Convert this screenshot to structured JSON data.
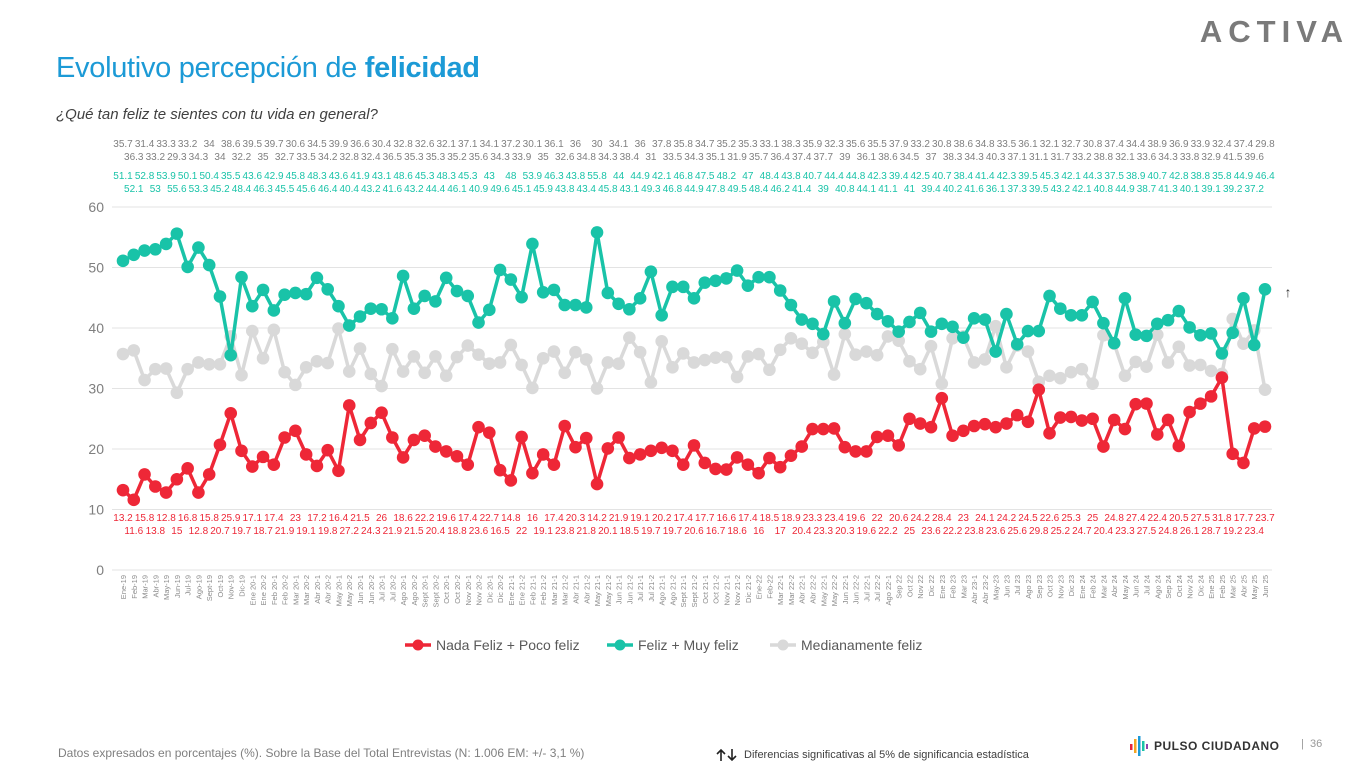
{
  "header": {
    "title_prefix": "Evolutivo percepción de ",
    "title_bold": "felicidad",
    "subtitle": "¿Qué tan feliz te sientes con tu vida en general?",
    "logo": "ACTIVA"
  },
  "footer": {
    "note": "Datos expresados en porcentajes (%). Sobre la Base del Total Entrevistas (N: 1.006  EM: +/- 3,1 %)",
    "significance": "Diferencias  significativas  al 5% de significancia estadística",
    "significance_icon": "up-down-arrows-icon",
    "brand": "PULSO CIUDADANO",
    "page_separator": "|",
    "page_number": "36"
  },
  "chart_data": {
    "type": "line",
    "title": "",
    "xlabel": "",
    "ylabel": "",
    "ylim": [
      0,
      60
    ],
    "yticks": [
      0,
      10,
      20,
      30,
      40,
      50,
      60
    ],
    "grid": true,
    "legend_position": "bottom",
    "annotation": {
      "text": "↑",
      "series": "Feliz + Muy feliz",
      "category": "Jun 25"
    },
    "categories": [
      "Ene-19",
      "Feb-19",
      "Mar-19",
      "Abr-19",
      "May-19",
      "Jun-19",
      "Jul-19",
      "Ago-19",
      "Sept-19",
      "Oct-19",
      "Nov-19",
      "Dic-19",
      "Ene 20-1",
      "Ene 20-2",
      "Feb 20-1",
      "Feb 20-2",
      "Mar 20-1",
      "Mar 20-2",
      "Abr 20-1",
      "Abr 20-2",
      "May 20-1",
      "May 20-2",
      "Jun 20-1",
      "Jun 20-2",
      "Jul 20-1",
      "Jul 20-2",
      "Ago 20-1",
      "Ago 20-2",
      "Sept 20-1",
      "Sept 20-2",
      "Oct 20-1",
      "Oct 20-2",
      "Nov 20-1",
      "Nov 20-2",
      "Dic 20-1",
      "Dic 20-2",
      "Ene 21-1",
      "Ene 21-2",
      "Feb 21-1",
      "Feb 21-2",
      "Mar 21-1",
      "Mar 21-2",
      "Abr 21-1",
      "Abr 21-2",
      "May 21-1",
      "May 21-2",
      "Jun 21-1",
      "Jun 21-2",
      "Jul 21-1",
      "Jul 21-2",
      "Ago 21-1",
      "Ago 21-2",
      "Sept 21-1",
      "Sept 21-2",
      "Oct 21-1",
      "Oct 21-2",
      "Nov 21-1",
      "Nov 21-2",
      "Dic 21-2",
      "Ene-22",
      "Feb-22",
      "Mar 22-1",
      "Mar 22-2",
      "Abr 22-1",
      "Abr 22-2",
      "May 22-1",
      "May 22-2",
      "Jun 22-1",
      "Jun 22-2",
      "Jul 22-1",
      "Jul 22-2",
      "Ago 22-1",
      "Sep 22",
      "Oct 22",
      "Nov 22",
      "Dic 22",
      "Ene 23",
      "Feb 23",
      "Mar 23",
      "Abr 23-1",
      "Abr 23-2",
      "May-23",
      "Jun 23",
      "Jul 23",
      "Ago 23",
      "Sep 23",
      "Oct 23",
      "Nov 23",
      "Dic 23",
      "Ene 24",
      "Feb 24",
      "Mar 24",
      "Abr 24",
      "May 24",
      "Jun 24",
      "Jul 24",
      "Ago 24",
      "Sep 24",
      "Oct 24",
      "Nov 24",
      "Dic 24",
      "Ene 25",
      "Feb 25",
      "Mar 25",
      "Abr 25",
      "May 25",
      "Jun 25"
    ],
    "series": [
      {
        "name": "Nada Feliz + Poco feliz",
        "color": "#ee2737",
        "values": [
          13.2,
          11.6,
          15.8,
          13.8,
          12.8,
          15,
          16.8,
          12.8,
          15.8,
          20.7,
          25.9,
          19.7,
          17.1,
          18.7,
          17.4,
          21.9,
          23,
          19.1,
          17.2,
          19.8,
          16.4,
          27.2,
          21.5,
          24.3,
          26,
          21.9,
          18.6,
          21.5,
          22.2,
          20.4,
          19.6,
          18.8,
          17.4,
          23.6,
          22.7,
          16.5,
          14.8,
          22,
          16,
          19.1,
          17.4,
          23.8,
          20.3,
          21.8,
          14.2,
          20.1,
          21.9,
          18.5,
          19.1,
          19.7,
          20.2,
          19.7,
          17.4,
          20.6,
          17.7,
          16.7,
          16.6,
          18.6,
          17.4,
          16,
          18.5,
          17,
          18.9,
          20.4,
          23.3,
          23.3,
          23.4,
          20.3,
          19.6,
          19.6,
          22,
          22.2,
          20.6,
          25,
          24.2,
          23.6,
          28.4,
          22.2,
          23,
          23.8,
          24.1,
          23.6,
          24.2,
          25.6,
          24.5,
          29.8,
          22.6,
          25.2,
          25.3,
          24.7,
          25,
          20.4,
          24.8,
          23.3,
          27.4,
          27.5,
          22.4,
          24.8,
          20.5,
          26.1,
          27.5,
          28.7,
          31.8,
          19.2,
          17.7,
          23.4,
          23.7
        ]
      },
      {
        "name": "Feliz + Muy feliz",
        "color": "#19c3a8",
        "values": [
          51.1,
          52.1,
          52.8,
          53,
          53.9,
          55.6,
          50.1,
          53.3,
          50.4,
          45.2,
          35.5,
          48.4,
          43.6,
          46.3,
          42.9,
          45.5,
          45.8,
          45.6,
          48.3,
          46.4,
          43.6,
          40.4,
          41.9,
          43.2,
          43.1,
          41.6,
          48.6,
          43.2,
          45.3,
          44.4,
          48.3,
          46.1,
          45.3,
          40.9,
          43,
          49.6,
          48,
          45.1,
          53.9,
          45.9,
          46.3,
          43.8,
          43.8,
          43.4,
          55.8,
          45.8,
          44,
          43.1,
          44.9,
          49.3,
          42.1,
          46.8,
          46.8,
          44.9,
          47.5,
          47.8,
          48.2,
          49.5,
          47,
          48.4,
          48.4,
          46.2,
          43.8,
          41.4,
          40.7,
          39,
          44.4,
          40.8,
          44.8,
          44.1,
          42.3,
          41.1,
          39.4,
          41,
          42.5,
          39.4,
          40.7,
          40.2,
          38.4,
          41.6,
          41.4,
          36.1,
          42.3,
          37.3,
          39.5,
          39.5,
          45.3,
          43.2,
          42.1,
          42.1,
          44.3,
          40.8,
          37.5,
          44.9,
          38.9,
          38.7,
          40.7,
          41.3,
          42.8,
          40.1,
          38.8,
          39.1,
          35.8,
          39.2,
          44.9,
          37.2,
          46.4
        ]
      },
      {
        "name": "Medianamente feliz",
        "color": "#d9d9d9",
        "values": [
          35.7,
          36.3,
          31.4,
          33.2,
          33.3,
          29.3,
          33.2,
          34.3,
          34,
          34,
          38.6,
          32.2,
          39.5,
          35,
          39.7,
          32.7,
          30.6,
          33.5,
          34.5,
          34.2,
          39.9,
          32.8,
          36.6,
          32.4,
          30.4,
          36.5,
          32.8,
          35.3,
          32.6,
          35.3,
          32.1,
          35.2,
          37.1,
          35.6,
          34.1,
          34.3,
          37.2,
          33.9,
          30.1,
          35,
          36.1,
          32.6,
          36,
          34.8,
          30,
          34.3,
          34.1,
          38.4,
          36,
          31,
          37.8,
          33.5,
          35.8,
          34.3,
          34.7,
          35.1,
          35.2,
          31.9,
          35.3,
          35.7,
          33.1,
          36.4,
          38.3,
          37.4,
          35.9,
          37.7,
          32.3,
          39,
          35.6,
          36.1,
          35.5,
          38.6,
          37.9,
          34.5,
          33.2,
          37,
          30.8,
          38.3,
          38.6,
          34.3,
          34.8,
          40.3,
          33.5,
          37.1,
          36.1,
          31.1,
          32.1,
          31.7,
          32.7,
          33.2,
          30.8,
          38.8,
          37.4,
          32.1,
          34.4,
          33.6,
          38.9,
          34.3,
          36.9,
          33.8,
          33.9,
          32.9,
          32.4,
          41.5,
          37.4,
          39.6,
          29.8
        ]
      }
    ]
  }
}
